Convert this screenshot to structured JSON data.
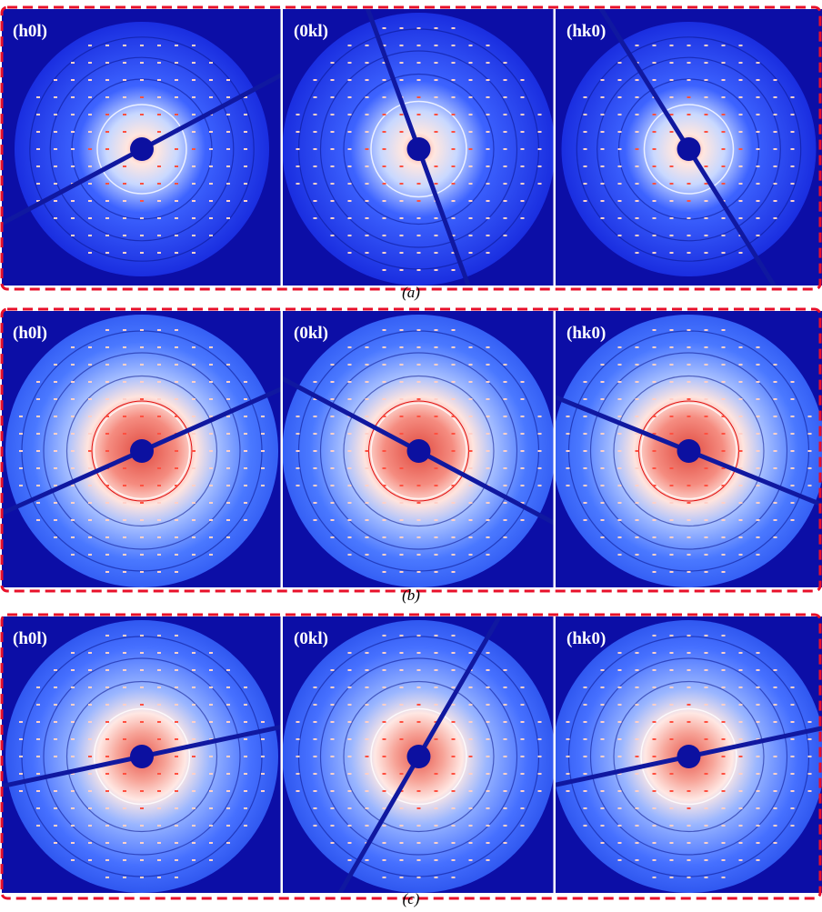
{
  "rows": [
    {
      "caption": "(a)",
      "panels": [
        {
          "label": "(h0l)"
        },
        {
          "label": "(0kl)"
        },
        {
          "label": "(hk0)"
        }
      ]
    },
    {
      "caption": "(b)",
      "panels": [
        {
          "label": "(h0l)"
        },
        {
          "label": "(0kl)"
        },
        {
          "label": "(hk0)"
        }
      ]
    },
    {
      "caption": "(c)",
      "panels": [
        {
          "label": "(h0l)"
        },
        {
          "label": "(0kl)"
        },
        {
          "label": "(hk0)"
        }
      ]
    }
  ]
}
